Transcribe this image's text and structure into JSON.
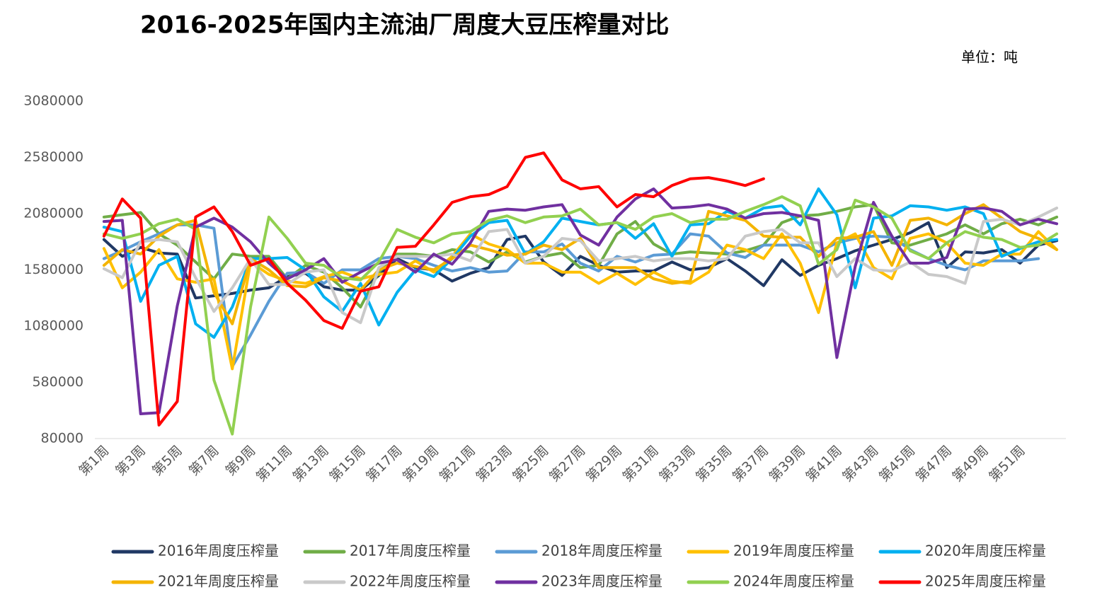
{
  "chart_data": {
    "type": "line",
    "title": "2016-2025年国内主流油厂周度大豆压榨量对比",
    "unit_label": "单位：吨",
    "categories": [
      "第1周",
      null,
      "第3周",
      null,
      "第5周",
      null,
      "第7周",
      null,
      "第9周",
      null,
      "第11周",
      null,
      "第13周",
      null,
      "第15周",
      null,
      "第17周",
      null,
      "第19周",
      null,
      "第21周",
      null,
      "第23周",
      null,
      "第25周",
      null,
      "第27周",
      null,
      "第29周",
      null,
      "第31周",
      null,
      "第33周",
      null,
      "第35周",
      null,
      "第37周",
      null,
      "第39周",
      null,
      "第41周",
      null,
      "第43周",
      null,
      "第45周",
      null,
      "第47周",
      null,
      "第49周",
      null,
      "第51周",
      null,
      null
    ],
    "ylim": [
      80000,
      3080000
    ],
    "yticks": [
      80000,
      580000,
      1080000,
      1580000,
      2080000,
      2580000,
      3080000
    ],
    "grid": false,
    "series": [
      {
        "name": "2016年周度压榨量",
        "color": "#203864",
        "values": [
          1850000,
          1700000,
          1780000,
          1730000,
          1720000,
          1330000,
          1350000,
          1370000,
          1400000,
          1420000,
          1520000,
          1550000,
          1430000,
          1400000,
          1400000,
          1530000,
          1680000,
          1600000,
          1580000,
          1480000,
          1550000,
          1600000,
          1850000,
          1880000,
          1650000,
          1530000,
          1700000,
          1620000,
          1560000,
          1570000,
          1570000,
          1650000,
          1580000,
          1600000,
          1680000,
          1570000,
          1440000,
          1670000,
          1530000,
          1620000,
          1680000,
          1750000,
          1800000,
          1850000,
          1910000,
          2000000,
          1600000,
          1740000,
          1730000,
          1760000,
          1640000,
          1800000,
          1840000
        ]
      },
      {
        "name": "2017年周度压榨量",
        "color": "#70ad47",
        "values": [
          2050000,
          2070000,
          2090000,
          1900000,
          1800000,
          1650000,
          1500000,
          1720000,
          1700000,
          1700000,
          1500000,
          1620000,
          1560000,
          1420000,
          1250000,
          1560000,
          1720000,
          1720000,
          1700000,
          1760000,
          1740000,
          1650000,
          1740000,
          1650000,
          1700000,
          1730000,
          1600000,
          1620000,
          1900000,
          2010000,
          1810000,
          1720000,
          1740000,
          1730000,
          1720000,
          1750000,
          1800000,
          2000000,
          2060000,
          2070000,
          2100000,
          2140000,
          2160000,
          1820000,
          1800000,
          1850000,
          1900000,
          1980000,
          1900000,
          1990000,
          2030000,
          1980000,
          2050000
        ]
      },
      {
        "name": "2018年周度压榨量",
        "color": "#5b9bd5",
        "values": [
          1680000,
          1750000,
          1830000,
          1900000,
          1980000,
          1980000,
          1950000,
          720000,
          1000000,
          1300000,
          1550000,
          1560000,
          1460000,
          1580000,
          1580000,
          1680000,
          1700000,
          1680000,
          1620000,
          1570000,
          1600000,
          1560000,
          1570000,
          1740000,
          1740000,
          1810000,
          1640000,
          1570000,
          1700000,
          1650000,
          1710000,
          1720000,
          1900000,
          1880000,
          1730000,
          1690000,
          1800000,
          1800000,
          1800000,
          1740000,
          1820000,
          1860000,
          1880000,
          1870000,
          1760000,
          1680000,
          1620000,
          1580000,
          1660000,
          1660000,
          1660000,
          1680000,
          null
        ]
      },
      {
        "name": "2019年周度压榨量",
        "color": "#ffc000",
        "values": [
          1770000,
          1420000,
          1560000,
          1760000,
          1500000,
          1470000,
          1500000,
          700000,
          1650000,
          1540000,
          1480000,
          1460000,
          1520000,
          1560000,
          1500000,
          1540000,
          1560000,
          1660000,
          1560000,
          1700000,
          1900000,
          1810000,
          1760000,
          1640000,
          1640000,
          1560000,
          1560000,
          1460000,
          1550000,
          1450000,
          1560000,
          1480000,
          1460000,
          1560000,
          1800000,
          1760000,
          1680000,
          1900000,
          1640000,
          1200000,
          1820000,
          1900000,
          1600000,
          1500000,
          1860000,
          1900000,
          1820000,
          1640000,
          1620000,
          1720000,
          1720000,
          1920000,
          1760000
        ]
      },
      {
        "name": "2020年周度压榨量",
        "color": "#00b0f0",
        "values": [
          1960000,
          1920000,
          1300000,
          1620000,
          1700000,
          1100000,
          980000,
          1250000,
          1680000,
          1680000,
          1690000,
          1580000,
          1340000,
          1210000,
          1460000,
          1090000,
          1380000,
          1580000,
          1520000,
          1680000,
          1880000,
          2000000,
          2020000,
          1720000,
          1830000,
          2040000,
          2010000,
          1980000,
          2000000,
          1860000,
          1990000,
          1700000,
          1980000,
          1990000,
          2100000,
          2040000,
          2130000,
          2150000,
          1980000,
          2300000,
          2070000,
          1420000,
          2040000,
          2060000,
          2150000,
          2140000,
          2110000,
          2140000,
          2080000,
          1700000,
          1770000,
          1830000,
          1850000
        ]
      },
      {
        "name": "2021年周度压榨量",
        "color": "#f4b400",
        "values": [
          1620000,
          1760000,
          1720000,
          1880000,
          1980000,
          2020000,
          1380000,
          1100000,
          1680000,
          1580000,
          1440000,
          1430000,
          1510000,
          1480000,
          1400000,
          1580000,
          1640000,
          1610000,
          1580000,
          1680000,
          1800000,
          1760000,
          1710000,
          1720000,
          1800000,
          1760000,
          1860000,
          1600000,
          1600000,
          1600000,
          1500000,
          1460000,
          1480000,
          2100000,
          2060000,
          2020000,
          1880000,
          1870000,
          1870000,
          1700000,
          1860000,
          1870000,
          1920000,
          1620000,
          2020000,
          2040000,
          1980000,
          2080000,
          2160000,
          2040000,
          1920000,
          1860000,
          1760000
        ]
      },
      {
        "name": "2022年周度压榨量",
        "color": "#c9c9c9",
        "values": [
          1590000,
          1510000,
          1830000,
          1850000,
          1830000,
          1510000,
          1210000,
          1420000,
          1680000,
          1450000,
          1450000,
          1560000,
          1580000,
          1200000,
          1110000,
          1600000,
          1700000,
          1700000,
          1700000,
          1720000,
          1660000,
          1920000,
          1940000,
          1640000,
          1700000,
          1860000,
          1840000,
          1660000,
          1680000,
          1700000,
          1660000,
          1680000,
          1680000,
          1660000,
          1680000,
          1880000,
          1920000,
          1940000,
          1820000,
          1820000,
          1520000,
          1680000,
          1580000,
          1570000,
          1650000,
          1540000,
          1520000,
          1460000,
          2010000,
          2030000,
          1980000,
          2050000,
          2130000
        ]
      },
      {
        "name": "2023年周度压榨量",
        "color": "#7030a0",
        "values": [
          2010000,
          2020000,
          300000,
          310000,
          1260000,
          1960000,
          2040000,
          1960000,
          1830000,
          1640000,
          1500000,
          1580000,
          1680000,
          1470000,
          1560000,
          1640000,
          1670000,
          1560000,
          1720000,
          1630000,
          1820000,
          2100000,
          2120000,
          2110000,
          2140000,
          2160000,
          1890000,
          1800000,
          2050000,
          2210000,
          2300000,
          2130000,
          2140000,
          2160000,
          2120000,
          2040000,
          2080000,
          2090000,
          2060000,
          2020000,
          800000,
          1610000,
          2180000,
          1880000,
          1640000,
          1640000,
          1690000,
          2120000,
          2130000,
          2100000,
          1980000,
          2030000,
          1990000
        ]
      },
      {
        "name": "2024年周度压榨量",
        "color": "#92d050",
        "values": [
          1900000,
          1860000,
          1900000,
          1990000,
          2030000,
          1940000,
          600000,
          120000,
          1250000,
          2050000,
          1860000,
          1640000,
          1620000,
          1510000,
          1490000,
          1650000,
          1940000,
          1870000,
          1820000,
          1900000,
          1920000,
          2020000,
          2060000,
          2000000,
          2050000,
          2060000,
          2120000,
          1980000,
          2000000,
          1940000,
          2050000,
          2080000,
          2000000,
          2030000,
          2030000,
          2100000,
          2160000,
          2230000,
          2150000,
          1630000,
          1760000,
          2200000,
          2140000,
          2040000,
          1750000,
          1680000,
          1820000,
          1920000,
          1870000,
          1850000,
          1780000,
          1800000,
          1900000
        ]
      },
      {
        "name": "2025年周度压榨量",
        "color": "#ff0000",
        "values": [
          1880000,
          2210000,
          2040000,
          200000,
          410000,
          2050000,
          2140000,
          1920000,
          1620000,
          1680000,
          1460000,
          1310000,
          1130000,
          1060000,
          1390000,
          1430000,
          1780000,
          1790000,
          1980000,
          2180000,
          2230000,
          2250000,
          2320000,
          2580000,
          2620000,
          2380000,
          2300000,
          2320000,
          2140000,
          2250000,
          2230000,
          2330000,
          2390000,
          2400000,
          2370000,
          2330000,
          2390000,
          null,
          null,
          null,
          null,
          null,
          null,
          null,
          null,
          null,
          null,
          null,
          null,
          null,
          null,
          null,
          null
        ]
      }
    ]
  }
}
